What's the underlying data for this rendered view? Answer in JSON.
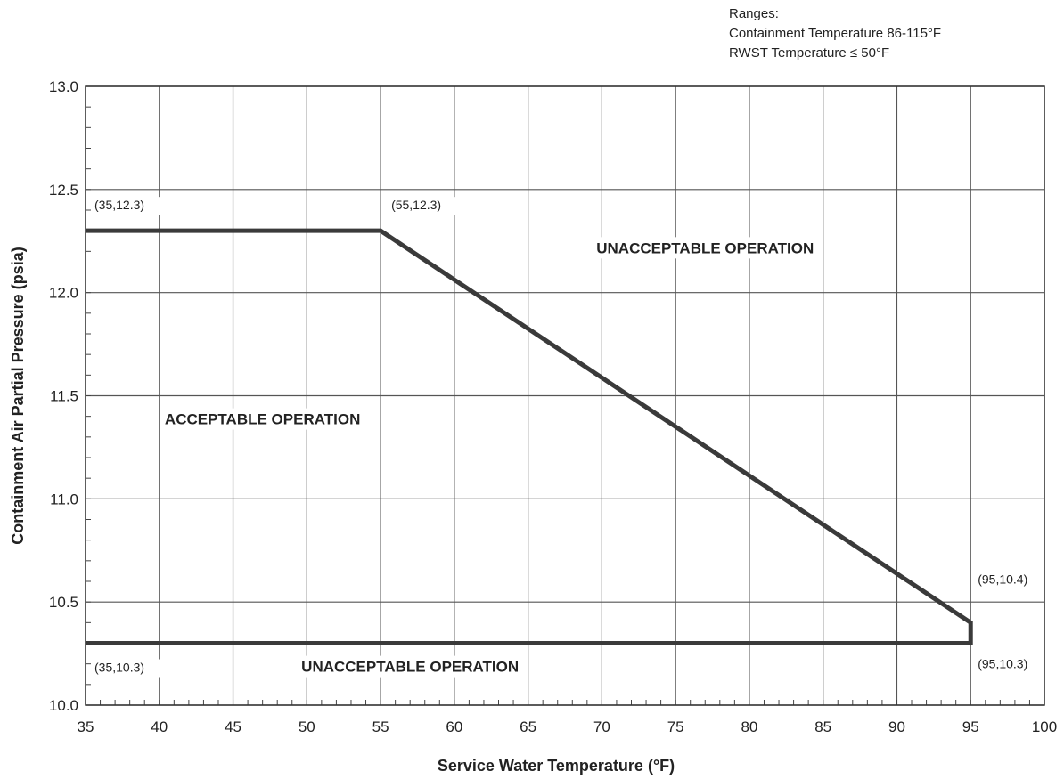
{
  "chart_data": {
    "type": "line",
    "title": "",
    "xlabel": "Service Water Temperature (°F)",
    "ylabel": "Containment Air Partial Pressure (psia)",
    "xlim": [
      35,
      100
    ],
    "ylim": [
      10.0,
      13.0
    ],
    "x_ticks": [
      35,
      40,
      45,
      50,
      55,
      60,
      65,
      70,
      75,
      80,
      85,
      90,
      95,
      100
    ],
    "y_ticks": [
      "10.0",
      "10.5",
      "11.0",
      "11.5",
      "12.0",
      "12.5",
      "13.0"
    ],
    "x_minor_step": 1,
    "y_minor_step": 0.1,
    "grid": true,
    "series": [
      {
        "points": [
          [
            35,
            12.3
          ],
          [
            55,
            12.3
          ],
          [
            95,
            10.4
          ],
          [
            95,
            10.3
          ],
          [
            35,
            10.3
          ]
        ]
      }
    ],
    "point_labels": [
      {
        "x": 35,
        "y": 12.3,
        "text": "(35,12.3)"
      },
      {
        "x": 55,
        "y": 12.3,
        "text": "(55,12.3)"
      },
      {
        "x": 95,
        "y": 10.4,
        "text": "(95,10.4)"
      },
      {
        "x": 35,
        "y": 10.3,
        "text": "(35,10.3)"
      },
      {
        "x": 95,
        "y": 10.3,
        "text": "(95,10.3)"
      }
    ],
    "region_labels": [
      {
        "x": 77,
        "y": 12.2,
        "text": "UNACCEPTABLE OPERATION"
      },
      {
        "x": 47,
        "y": 11.37,
        "text": "ACCEPTABLE OPERATION"
      },
      {
        "x": 57,
        "y": 10.17,
        "text": "UNACCEPTABLE OPERATION"
      }
    ],
    "annotations": [
      "Ranges:",
      "Containment Temperature 86-115°F",
      "RWST Temperature ≤ 50°F"
    ]
  }
}
